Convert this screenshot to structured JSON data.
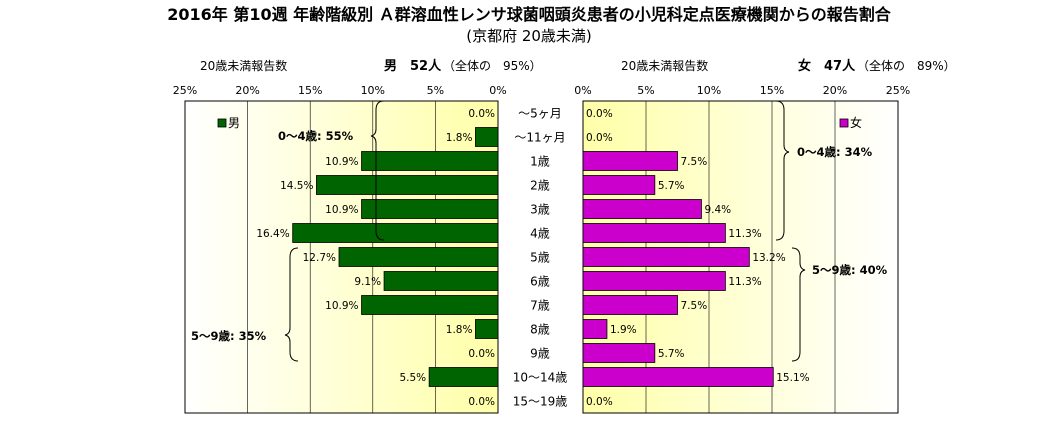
{
  "chart_data": {
    "type": "bar",
    "title": "2016年 第10週 年齢階級別 Ａ群溶血性レンサ球菌咽頭炎患者の小児科定点医療機関からの報告割合",
    "subtitle": "(京都府 20歳未満)",
    "categories": [
      "～5ヶ月",
      "～11ヶ月",
      "1歳",
      "2歳",
      "3歳",
      "4歳",
      "5歳",
      "6歳",
      "7歳",
      "8歳",
      "9歳",
      "10～14歳",
      "15～19歳"
    ],
    "series": [
      {
        "name": "男",
        "color": "#006400",
        "values": [
          0.0,
          1.8,
          10.9,
          14.5,
          10.9,
          16.4,
          12.7,
          9.1,
          10.9,
          1.8,
          0.0,
          5.5,
          0.0
        ],
        "labels": [
          "0.0%",
          "1.8%",
          "10.9%",
          "14.5%",
          "10.9%",
          "16.4%",
          "12.7%",
          "9.1%",
          "10.9%",
          "1.8%",
          "0.0%",
          "5.5%",
          "0.0%"
        ],
        "header": {
          "report_label": "20歳未満報告数",
          "count_text": "男　52人",
          "share_text": "（全体の　95%）"
        },
        "groups": [
          {
            "label": "0～4歳: 55%"
          },
          {
            "label": "5～9歳: 35%"
          }
        ]
      },
      {
        "name": "女",
        "color": "#CC00CC",
        "values": [
          0.0,
          0.0,
          7.5,
          5.7,
          9.4,
          11.3,
          13.2,
          11.3,
          7.5,
          1.9,
          5.7,
          15.1,
          0.0
        ],
        "labels": [
          "0.0%",
          "0.0%",
          "7.5%",
          "5.7%",
          "9.4%",
          "11.3%",
          "13.2%",
          "11.3%",
          "7.5%",
          "1.9%",
          "5.7%",
          "15.1%",
          "0.0%"
        ],
        "header": {
          "report_label": "20歳未満報告数",
          "count_text": "女　47人",
          "share_text": "（全体の　89%）"
        },
        "groups": [
          {
            "label": "0～4歳: 34%"
          },
          {
            "label": "5～9歳: 40%"
          }
        ]
      }
    ],
    "left_ticks": [
      "25%",
      "20%",
      "15%",
      "10%",
      "5%",
      "0%"
    ],
    "right_ticks": [
      "0%",
      "5%",
      "10%",
      "15%",
      "20%",
      "25%"
    ],
    "xlim": [
      0,
      25
    ],
    "grid": true,
    "plot_background": "#FFFFC0"
  }
}
